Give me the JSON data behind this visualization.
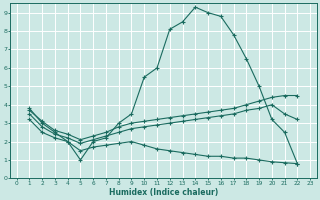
{
  "bg_color": "#cce8e4",
  "grid_color": "#ffffff",
  "line_color": "#1a6b5f",
  "xlabel": "Humidex (Indice chaleur)",
  "xlim": [
    -0.5,
    23.5
  ],
  "ylim": [
    0,
    9.5
  ],
  "xticks": [
    0,
    1,
    2,
    3,
    4,
    5,
    6,
    7,
    8,
    9,
    10,
    11,
    12,
    13,
    14,
    15,
    16,
    17,
    18,
    19,
    20,
    21,
    22,
    23
  ],
  "yticks": [
    0,
    1,
    2,
    3,
    4,
    5,
    6,
    7,
    8,
    9
  ],
  "line1_x": [
    1,
    2,
    3,
    4,
    5,
    6,
    7,
    8,
    9,
    10,
    11,
    12,
    13,
    14,
    15,
    16,
    17,
    18,
    19,
    20,
    21,
    22
  ],
  "line1_y": [
    3.8,
    3.0,
    2.5,
    2.0,
    1.0,
    2.0,
    2.2,
    3.0,
    3.5,
    5.5,
    6.0,
    8.1,
    8.5,
    9.3,
    9.0,
    8.8,
    7.8,
    6.5,
    5.0,
    3.2,
    2.5,
    0.8
  ],
  "line2_x": [
    1,
    2,
    3,
    4,
    5,
    6,
    7,
    8,
    9,
    10,
    11,
    12,
    13,
    14,
    15,
    16,
    17,
    18,
    19,
    20,
    21,
    22
  ],
  "line2_y": [
    3.7,
    3.1,
    2.6,
    2.4,
    2.1,
    2.3,
    2.5,
    2.8,
    3.0,
    3.1,
    3.2,
    3.3,
    3.4,
    3.5,
    3.6,
    3.7,
    3.8,
    4.0,
    4.2,
    4.4,
    4.5,
    4.5
  ],
  "line3_x": [
    1,
    2,
    3,
    4,
    5,
    6,
    7,
    8,
    9,
    10,
    11,
    12,
    13,
    14,
    15,
    16,
    17,
    18,
    19,
    20,
    21,
    22
  ],
  "line3_y": [
    3.5,
    2.8,
    2.4,
    2.2,
    1.9,
    2.1,
    2.3,
    2.5,
    2.7,
    2.8,
    2.9,
    3.0,
    3.1,
    3.2,
    3.3,
    3.4,
    3.5,
    3.7,
    3.8,
    4.0,
    3.5,
    3.2
  ],
  "line4_x": [
    1,
    2,
    3,
    4,
    5,
    6,
    7,
    8,
    9,
    10,
    11,
    12,
    13,
    14,
    15,
    16,
    17,
    18,
    19,
    20,
    21,
    22
  ],
  "line4_y": [
    3.2,
    2.5,
    2.2,
    2.0,
    1.5,
    1.7,
    1.8,
    1.9,
    2.0,
    1.8,
    1.6,
    1.5,
    1.4,
    1.3,
    1.2,
    1.2,
    1.1,
    1.1,
    1.0,
    0.9,
    0.85,
    0.8
  ]
}
